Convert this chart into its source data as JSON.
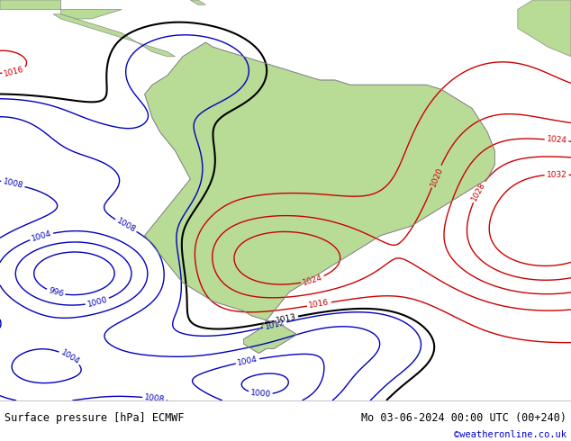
{
  "title_left": "Surface pressure [hPa] ECMWF",
  "title_right": "Mo 03-06-2024 00:00 UTC (00+240)",
  "copyright": "©weatheronline.co.uk",
  "bg_color": "#d8dde8",
  "land_color": "#b8dc96",
  "contour_black": "#000000",
  "contour_blue": "#0000bb",
  "contour_red": "#cc0000",
  "footer_bg": "#ffffff",
  "footer_text_color": "#000000",
  "copyright_color": "#0000cc",
  "fig_width": 6.34,
  "fig_height": 4.9,
  "dpi": 100,
  "lon_min": -100,
  "lon_max": -25,
  "lat_min": -65,
  "lat_max": 20
}
